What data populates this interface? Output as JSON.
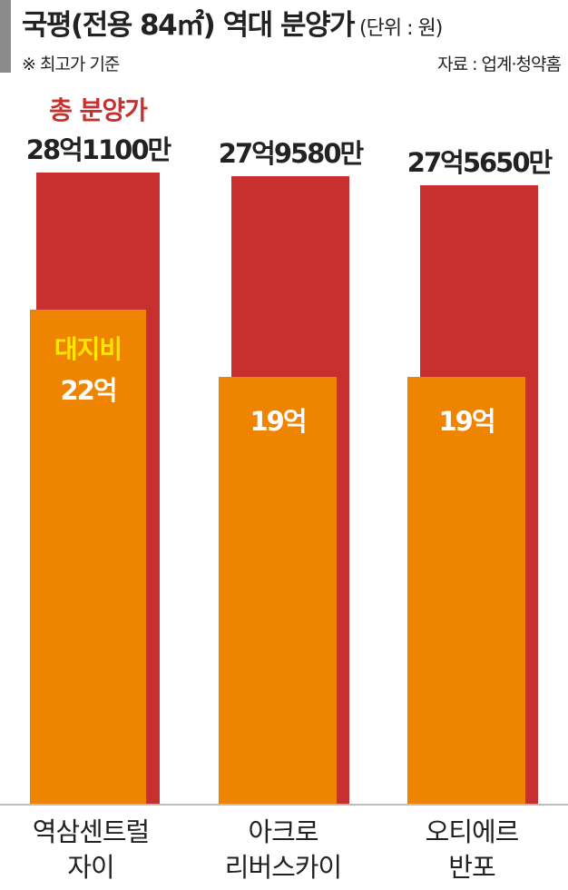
{
  "chart_data": {
    "type": "bar",
    "title": "국평(전용 84㎡) 역대 분양가",
    "unit_note": "(단위 : 원)",
    "subtitle": "※ 최고가 기준",
    "source": "자료 : 업계·청약홈",
    "categories": [
      "역삼센트럴\n자이",
      "아크로\n리버스카이",
      "오티에르\n반포"
    ],
    "series": [
      {
        "name": "총 분양가",
        "color": "#c8302f",
        "values": [
          281100,
          279580,
          275650
        ],
        "value_labels": [
          "28억1100만",
          "27억9580만",
          "27억5650만"
        ],
        "label_color": "#222222",
        "name_color": "#c8302f"
      },
      {
        "name": "대지비",
        "color": "#ee8400",
        "values": [
          220000,
          190000,
          190000
        ],
        "value_labels": [
          "22억",
          "19억",
          "19억"
        ],
        "label_color": "#ffffff",
        "name_color": "#ffe600"
      }
    ]
  }
}
